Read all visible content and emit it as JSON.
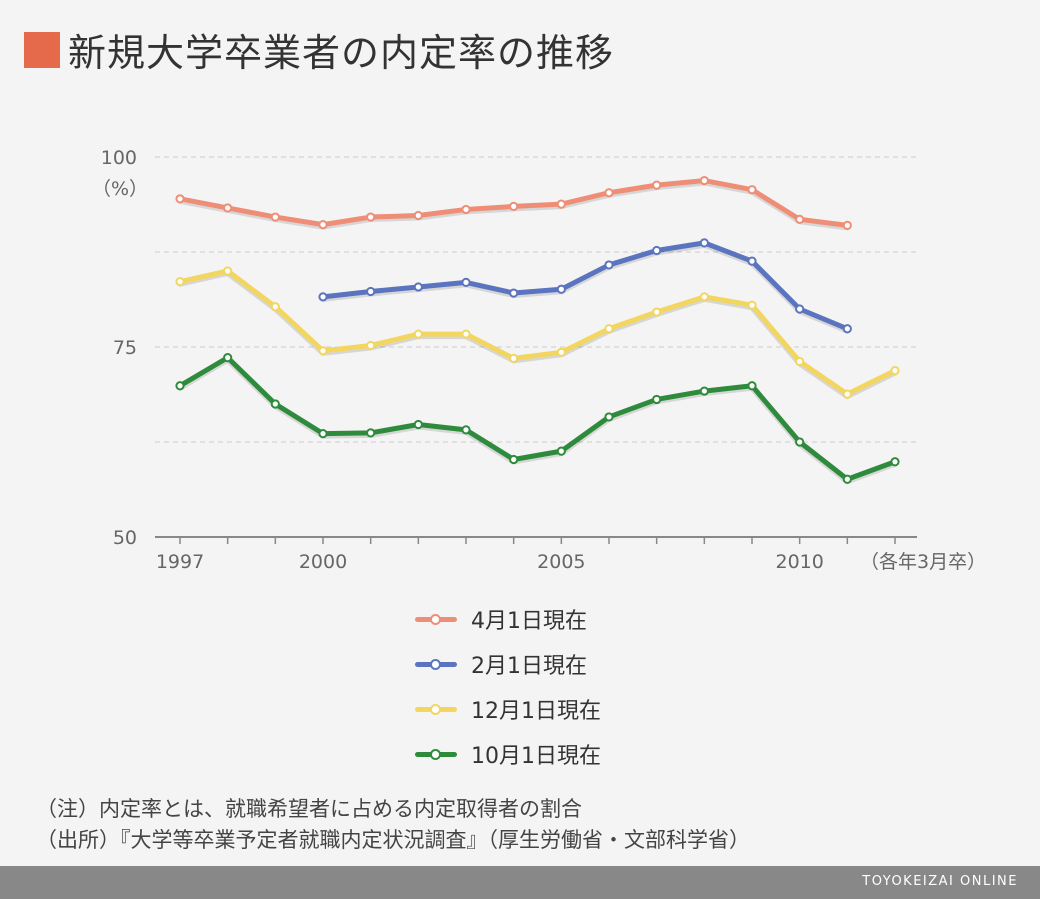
{
  "title": "新規大学卒業者の内定率の推移",
  "colors": {
    "accent": "#e56a4b",
    "footer": "#888888",
    "background": "#f4f4f4"
  },
  "chart_data": {
    "type": "line",
    "title": "新規大学卒業者の内定率の推移",
    "ylabel": "（%）",
    "xlabel": "（各年3月卒）",
    "ylim": [
      50,
      100
    ],
    "yticks": [
      50,
      75,
      100
    ],
    "y_gridlines": [
      100,
      87.5,
      75,
      62.5
    ],
    "xlim": [
      1997,
      2012
    ],
    "xtick_labels": [
      1997,
      2000,
      2005,
      2010
    ],
    "x": [
      1997,
      1998,
      1999,
      2000,
      2001,
      2002,
      2003,
      2004,
      2005,
      2006,
      2007,
      2008,
      2009,
      2010,
      2011,
      2012
    ],
    "series": [
      {
        "name": "4月1日現在",
        "color": "#ef8e76",
        "values": [
          94.5,
          93.3,
          92.1,
          91.1,
          92.1,
          92.3,
          93.1,
          93.5,
          93.8,
          95.3,
          96.3,
          96.9,
          95.7,
          91.8,
          91.0,
          null
        ]
      },
      {
        "name": "2月1日現在",
        "color": "#5b74bf",
        "values": [
          null,
          null,
          null,
          81.6,
          82.3,
          82.9,
          83.5,
          82.1,
          82.6,
          85.8,
          87.7,
          88.7,
          86.3,
          80.0,
          77.4,
          null
        ]
      },
      {
        "name": "12月1日現在",
        "color": "#f2d660",
        "values": [
          83.6,
          85.0,
          80.3,
          74.5,
          75.2,
          76.7,
          76.7,
          73.5,
          74.3,
          77.4,
          79.6,
          81.6,
          80.5,
          73.1,
          68.8,
          71.9
        ]
      },
      {
        "name": "10月1日現在",
        "color": "#2e8b3c",
        "values": [
          69.9,
          73.6,
          67.5,
          63.6,
          63.7,
          64.8,
          64.1,
          60.2,
          61.3,
          65.8,
          68.1,
          69.2,
          69.9,
          62.5,
          57.6,
          59.9
        ]
      }
    ],
    "legend_position": "bottom",
    "grid": true
  },
  "legend": [
    {
      "label": "4月1日現在"
    },
    {
      "label": "2月1日現在"
    },
    {
      "label": "12月1日現在"
    },
    {
      "label": "10月1日現在"
    }
  ],
  "notes": {
    "note": "（注）内定率とは、就職希望者に占める内定取得者の割合",
    "source": "（出所）『大学等卒業予定者就職内定状況調査』（厚生労働省・文部科学省）"
  },
  "footer": {
    "brand": "TOYOKEIZAI ONLINE"
  }
}
